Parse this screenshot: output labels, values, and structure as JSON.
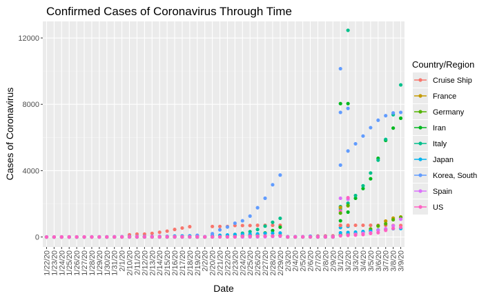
{
  "chart_data": {
    "type": "scatter",
    "title": "Confirmed Cases of Coronavirus Through Time",
    "xlabel": "Date",
    "ylabel": "Cases of Coronavirus",
    "ylim": [
      -600,
      13000
    ],
    "yticks": [
      0,
      4000,
      8000,
      12000
    ],
    "ytick_labels": [
      "0",
      "4000",
      "8000",
      "12000"
    ],
    "grid": true,
    "legend_position": "right",
    "legend_title": "Country/Region",
    "x_categories": [
      "1/22/20",
      "1/23/20",
      "1/24/20",
      "1/25/20",
      "1/26/20",
      "1/27/20",
      "1/28/20",
      "1/29/20",
      "1/30/20",
      "1/31/20",
      "2/1/20",
      "2/10/20",
      "2/11/20",
      "2/12/20",
      "2/13/20",
      "2/14/20",
      "2/15/20",
      "2/16/20",
      "2/17/20",
      "2/18/20",
      "2/19/20",
      "2/2/20",
      "2/20/20",
      "2/21/20",
      "2/22/20",
      "2/23/20",
      "2/24/20",
      "2/25/20",
      "2/26/20",
      "2/27/20",
      "2/28/20",
      "2/29/20",
      "2/3/20",
      "2/4/20",
      "2/5/20",
      "2/6/20",
      "2/7/20",
      "2/8/20",
      "2/9/20",
      "3/1/20",
      "3/2/20",
      "3/3/20",
      "3/4/20",
      "3/5/20",
      "3/6/20",
      "3/7/20",
      "3/8/20",
      "3/9/20"
    ],
    "series": [
      {
        "name": "Cruise Ship",
        "color": "#F8766D",
        "values": [
          0,
          0,
          0,
          0,
          0,
          0,
          0,
          0,
          0,
          0,
          0,
          135,
          175,
          175,
          218,
          285,
          355,
          454,
          542,
          621,
          0,
          0,
          634,
          634,
          634,
          691,
          691,
          691,
          705,
          705,
          705,
          705,
          0,
          0,
          10,
          20,
          61,
          64,
          70,
          705,
          706,
          706,
          706,
          706,
          706,
          706,
          696,
          696
        ]
      },
      {
        "name": "France",
        "color": "#C49A00",
        "values": [
          0,
          0,
          3,
          3,
          3,
          3,
          4,
          5,
          5,
          6,
          6,
          11,
          11,
          11,
          11,
          11,
          12,
          12,
          12,
          12,
          12,
          6,
          12,
          12,
          12,
          12,
          12,
          14,
          18,
          38,
          57,
          100,
          6,
          6,
          6,
          6,
          6,
          11,
          11,
          130,
          191,
          204,
          288,
          380,
          656,
          959,
          1136,
          1209
        ]
      },
      {
        "name": "Germany",
        "color": "#53B400",
        "values": [
          0,
          0,
          0,
          0,
          0,
          1,
          4,
          4,
          4,
          5,
          8,
          14,
          16,
          16,
          16,
          16,
          16,
          16,
          16,
          16,
          16,
          10,
          16,
          16,
          16,
          16,
          16,
          17,
          27,
          46,
          48,
          79,
          12,
          12,
          12,
          12,
          13,
          13,
          14,
          130,
          159,
          196,
          262,
          482,
          670,
          799,
          1040,
          1176
        ]
      },
      {
        "name": "Iran",
        "color": "#00B81F",
        "values": [
          0,
          0,
          0,
          0,
          0,
          0,
          0,
          0,
          0,
          0,
          0,
          0,
          0,
          0,
          0,
          0,
          0,
          0,
          0,
          0,
          2,
          0,
          5,
          18,
          28,
          43,
          61,
          95,
          139,
          245,
          388,
          593,
          0,
          0,
          0,
          0,
          0,
          0,
          0,
          978,
          1501,
          2336,
          2922,
          3513,
          4747,
          5823,
          6566,
          7161
        ]
      },
      {
        "name": "Italy",
        "color": "#00C08B",
        "values": [
          0,
          0,
          0,
          0,
          0,
          0,
          0,
          0,
          0,
          2,
          2,
          3,
          3,
          3,
          3,
          3,
          3,
          3,
          3,
          3,
          3,
          2,
          3,
          20,
          62,
          155,
          229,
          322,
          453,
          655,
          888,
          1128,
          2,
          2,
          2,
          2,
          3,
          3,
          3,
          1694,
          2036,
          2502,
          3089,
          3858,
          4636,
          5883,
          7375,
          9172
        ]
      },
      {
        "name": "Japan",
        "color": "#00B4EF",
        "values": [
          2,
          1,
          2,
          2,
          4,
          4,
          7,
          7,
          11,
          15,
          20,
          26,
          26,
          28,
          28,
          29,
          43,
          59,
          66,
          74,
          84,
          20,
          94,
          105,
          122,
          147,
          159,
          170,
          189,
          214,
          228,
          241,
          20,
          22,
          22,
          45,
          25,
          25,
          26,
          256,
          274,
          293,
          331,
          360,
          420,
          461,
          502,
          511
        ]
      },
      {
        "name": "Korea, South",
        "color": "#619CFF",
        "values": [
          1,
          1,
          2,
          2,
          3,
          4,
          4,
          4,
          4,
          11,
          12,
          27,
          28,
          28,
          28,
          28,
          29,
          30,
          31,
          31,
          104,
          15,
          204,
          433,
          602,
          833,
          977,
          1261,
          1766,
          2337,
          3150,
          3736,
          15,
          16,
          19,
          23,
          24,
          24,
          25,
          4335,
          5186,
          5621,
          6088,
          6593,
          7041,
          7314,
          7478,
          7513
        ]
      },
      {
        "name": "Spain",
        "color": "#DB72FB",
        "values": [
          0,
          0,
          0,
          0,
          0,
          0,
          0,
          0,
          0,
          0,
          1,
          2,
          2,
          2,
          2,
          2,
          2,
          2,
          2,
          2,
          2,
          1,
          2,
          2,
          2,
          2,
          2,
          6,
          13,
          15,
          32,
          45,
          1,
          1,
          1,
          1,
          1,
          1,
          2,
          84,
          120,
          165,
          222,
          259,
          400,
          500,
          673,
          1073
        ]
      },
      {
        "name": "US",
        "color": "#FF61C3",
        "values": [
          1,
          1,
          2,
          2,
          5,
          5,
          5,
          5,
          5,
          7,
          8,
          11,
          12,
          12,
          13,
          13,
          13,
          13,
          13,
          13,
          13,
          8,
          13,
          15,
          15,
          15,
          51,
          51,
          57,
          58,
          60,
          68,
          11,
          11,
          12,
          12,
          12,
          12,
          12,
          74,
          98,
          118,
          149,
          217,
          262,
          402,
          518,
          583
        ]
      }
    ],
    "extra_points": [
      {
        "x": "3/1/20",
        "y": 7513,
        "series": "Korea, South"
      },
      {
        "x": "3/1/20",
        "y": 10149,
        "series": "Korea, South"
      },
      {
        "x": "3/1/20",
        "y": 8042,
        "series": "Iran"
      },
      {
        "x": "3/1/20",
        "y": 1835,
        "series": "Italy"
      },
      {
        "x": "3/1/20",
        "y": 2336,
        "series": "Spain"
      },
      {
        "x": "3/1/20",
        "y": 1564,
        "series": "US"
      },
      {
        "x": "3/1/20",
        "y": 1440,
        "series": "Germany"
      },
      {
        "x": "3/1/20",
        "y": 1784,
        "series": "France"
      },
      {
        "x": "3/1/20",
        "y": 568,
        "series": "Japan"
      },
      {
        "x": "3/1/20",
        "y": 696,
        "series": "Cruise Ship"
      },
      {
        "x": "3/10/20",
        "y": 12462,
        "series": "Italy"
      },
      {
        "x": "3/10/20",
        "y": 8042,
        "series": "Iran"
      },
      {
        "x": "3/10/20",
        "y": 7755,
        "series": "Korea, South"
      },
      {
        "x": "3/10/20",
        "y": 2281,
        "series": "Spain"
      },
      {
        "x": "3/10/20",
        "y": 2369,
        "series": "US"
      },
      {
        "x": "3/10/20",
        "y": 1878,
        "series": "France"
      },
      {
        "x": "3/10/20",
        "y": 1908,
        "series": "Germany"
      },
      {
        "x": "3/10/20",
        "y": 639,
        "series": "Japan"
      },
      {
        "x": "3/10/20",
        "y": 696,
        "series": "Cruise Ship"
      }
    ]
  }
}
